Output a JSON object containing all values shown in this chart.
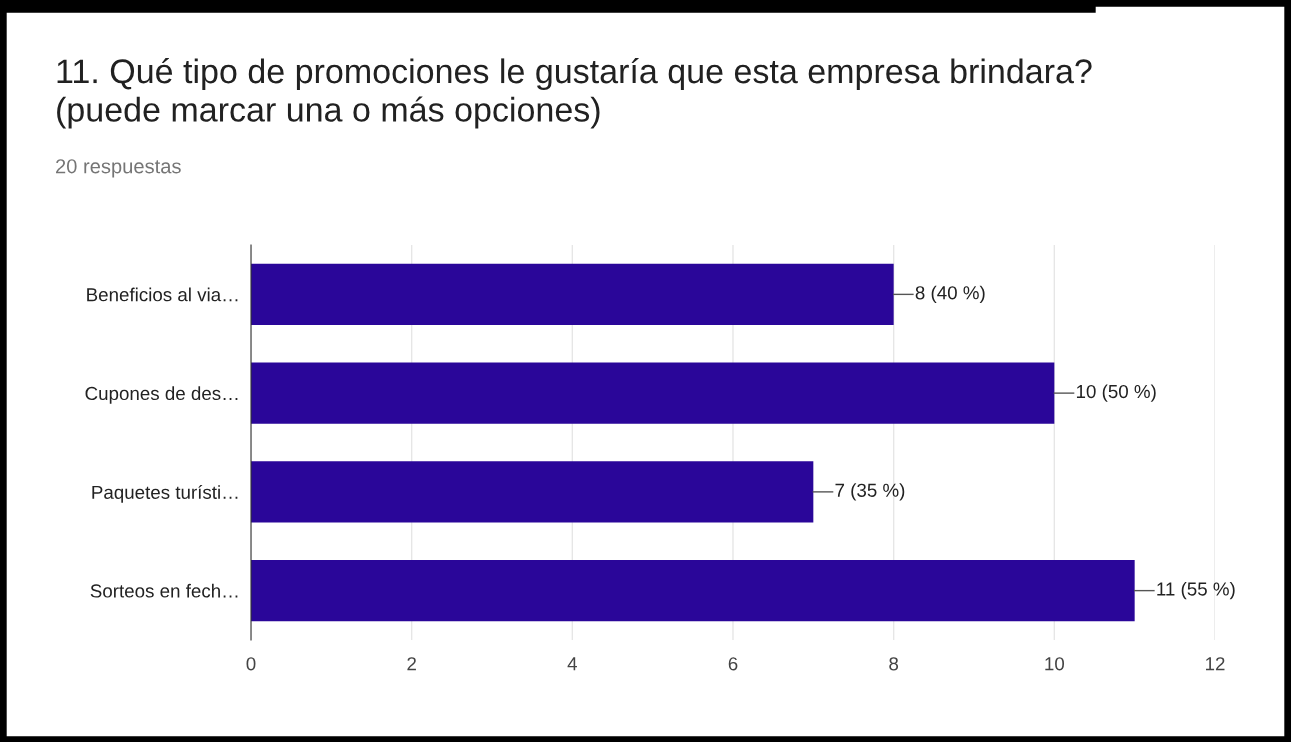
{
  "chart_data": {
    "type": "bar",
    "orientation": "horizontal",
    "title": "11. Qué tipo de promociones le gustaría que esta empresa brindara?\n(puede marcar una o más opciones)",
    "subtitle": "20 respuestas",
    "categories": [
      "Beneficios al via…",
      "Cupones de des…",
      "Paquetes turísti…",
      "Sorteos en fech…"
    ],
    "values": [
      8,
      10,
      7,
      11
    ],
    "color": "#2a0699",
    "value_labels": [
      "8 (40 %)",
      "10 (50 %)",
      "7 (35 %)",
      "11 (55 %)"
    ],
    "xlim": [
      0,
      12
    ],
    "xticks": [
      0,
      2,
      4,
      6,
      8,
      10,
      12
    ],
    "grid": "x",
    "legend": false
  }
}
